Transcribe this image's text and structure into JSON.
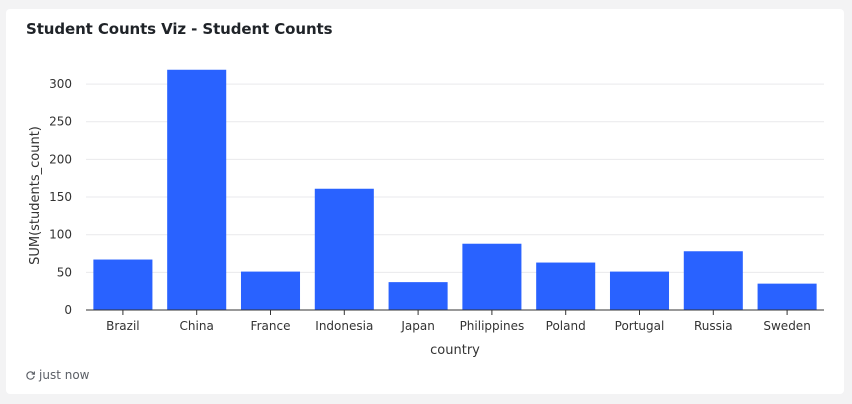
{
  "card": {
    "title": "Student Counts Viz - Student Counts",
    "refresh_text": "just now"
  },
  "colors": {
    "bar": "#2962ff",
    "grid": "#e9e9ec",
    "axis": "#333333",
    "text": "#333333"
  },
  "chart_data": {
    "type": "bar",
    "title": "",
    "xlabel": "country",
    "ylabel": "SUM(students_count)",
    "categories": [
      "Brazil",
      "China",
      "France",
      "Indonesia",
      "Japan",
      "Philippines",
      "Poland",
      "Portugal",
      "Russia",
      "Sweden"
    ],
    "values": [
      67,
      319,
      51,
      161,
      37,
      88,
      63,
      51,
      78,
      35
    ],
    "ylim": [
      0,
      320
    ],
    "yticks": [
      0,
      50,
      100,
      150,
      200,
      250,
      300
    ],
    "grid": true,
    "legend": "none"
  }
}
